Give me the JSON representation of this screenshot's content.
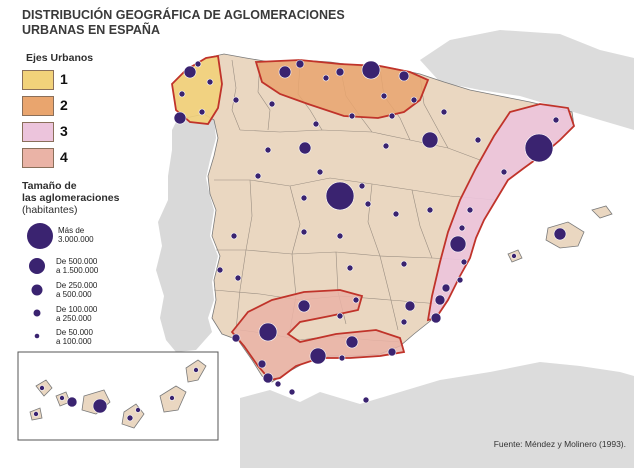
{
  "title_line1": "DISTRIBUCIÓN GEOGRÁFICA DE AGLOMERACIONES",
  "title_line2": "URBANAS EN ESPAÑA",
  "legend_axes": {
    "heading": "Ejes Urbanos",
    "items": [
      {
        "label": "1",
        "color": "#f2d27a"
      },
      {
        "label": "2",
        "color": "#e9a56e"
      },
      {
        "label": "3",
        "color": "#ecc4dc"
      },
      {
        "label": "4",
        "color": "#eab3a6"
      }
    ]
  },
  "legend_size": {
    "heading_line1": "Tamaño de",
    "heading_line2": "las aglomeraciones",
    "heading_line3": "(habitantes)",
    "items": [
      {
        "label": "Más de\n3.000.000"
      },
      {
        "label": "De 500.000\na 1.500.000"
      },
      {
        "label": "De 250.000\na 500.000"
      },
      {
        "label": "De 100.000\na 250.000"
      },
      {
        "label": "De 50.000\na 100.000"
      }
    ]
  },
  "source": "Fuente: Méndez y Molinero (1993).",
  "colors": {
    "land": "#ead7c1",
    "sea": "#ffffff",
    "foreign_land": "#d8d8d8",
    "border": "#8a8a8a",
    "circle": "#3a2370",
    "axis_outline": "#c0332a"
  }
}
